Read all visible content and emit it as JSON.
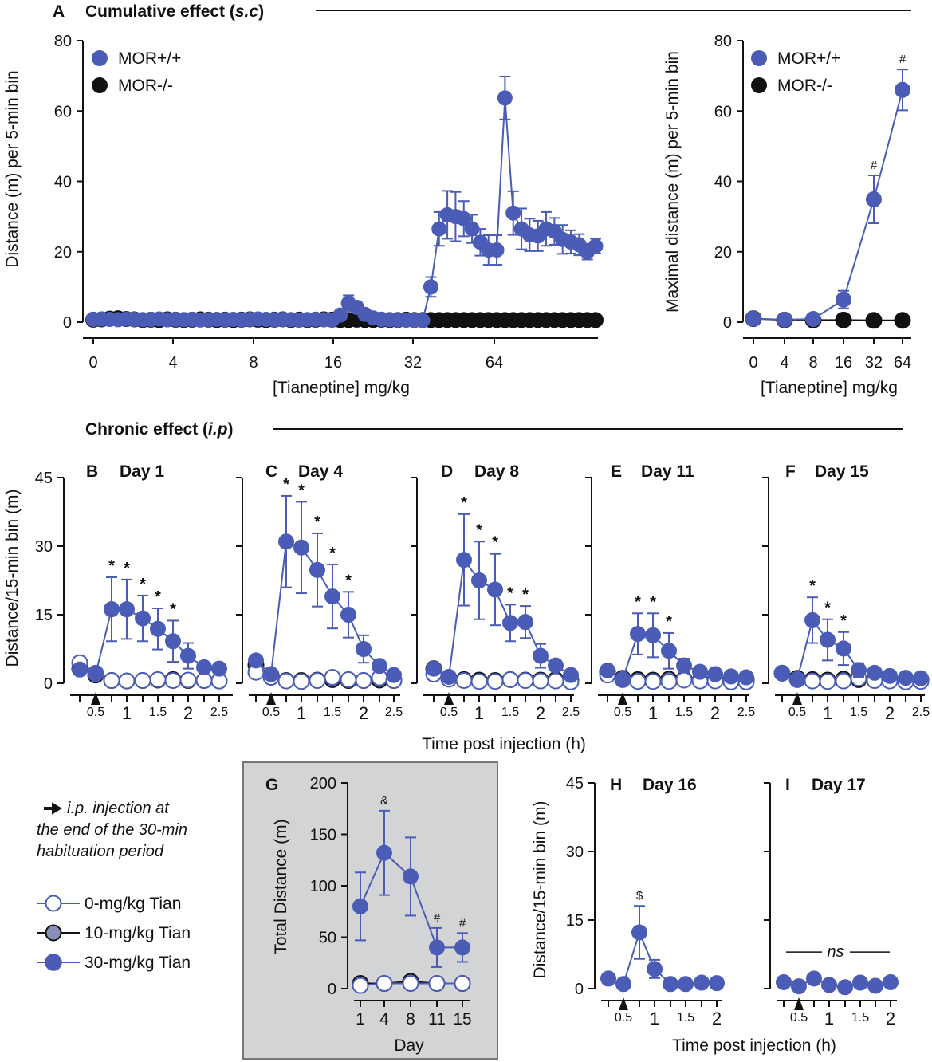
{
  "colors": {
    "blue": "#4a5cb6",
    "black": "#111111",
    "grey": "#8a8fb8",
    "white": "#ffffff",
    "panel_bg": "#d3d4d6",
    "panel_border": "#777777"
  },
  "section_a": {
    "letter": "A",
    "title": "Cumulative effect (",
    "title_italic": "s.c",
    "title_end": ")"
  },
  "section_b": {
    "title": "Chronic effect (",
    "title_italic": "i.p",
    "title_end": ")"
  },
  "chart_data": [
    {
      "id": "A-left",
      "type": "line",
      "title": "",
      "xlabel": "[Tianeptine] mg/kg",
      "ylabel": "Distance (m) per 5-min bin",
      "ylim": [
        0,
        80
      ],
      "yticks": [
        "0",
        "20",
        "40",
        "60",
        "80"
      ],
      "xticks": [
        "0",
        "4",
        "8",
        "16",
        "32",
        "64"
      ],
      "legend": [
        {
          "name": "MOR+/+",
          "color": "blue"
        },
        {
          "name": "MOR-/-",
          "color": "black"
        }
      ],
      "series": [
        {
          "name": "MOR+/+",
          "values": [
            0.8,
            0.9,
            0.8,
            0.7,
            0.9,
            0.8,
            0.7,
            0.8,
            0.9,
            0.7,
            0.8,
            0.7,
            0.8,
            0.6,
            0.7,
            0.8,
            0.7,
            0.8,
            0.7,
            0.8,
            0.9,
            0.8,
            0.7,
            0.8,
            0.7,
            0.6,
            0.7,
            0.8,
            0.7,
            0.6,
            2,
            5.4,
            4.2,
            2.2,
            1.2,
            0.8,
            0.7,
            0.6,
            0.6,
            0.5,
            0.5,
            10,
            26.5,
            30.5,
            30,
            29.4,
            26.5,
            22.7,
            20.5,
            20.5,
            63.7,
            31,
            26.5,
            24.8,
            24.5,
            26.5,
            25.8,
            23.5,
            22.8,
            22,
            20,
            21.6
          ],
          "errors": [
            0,
            0,
            0,
            0,
            0,
            0,
            0,
            0,
            0,
            0,
            0,
            0,
            0,
            0,
            0,
            0,
            0,
            0,
            0,
            0,
            0,
            0,
            0,
            0,
            0,
            0,
            0,
            0,
            0,
            0,
            1,
            2.2,
            1.5,
            1,
            0,
            0,
            0,
            0,
            0,
            0,
            0,
            2.8,
            4.8,
            6.8,
            7,
            5,
            4,
            3.8,
            4.2,
            4.2,
            6.1,
            6.2,
            5.8,
            4.6,
            4.3,
            4.8,
            3.8,
            4.1,
            3.3,
            3,
            2.2,
            2.1
          ]
        },
        {
          "name": "MOR-/-",
          "values": [
            0.7,
            0.8,
            1,
            1.1,
            0.9,
            0.8,
            0.6,
            0.7,
            0.6,
            0.8,
            0.7,
            0.6,
            0.7,
            0.8,
            0.7,
            0.6,
            0.7,
            0.6,
            0.7,
            0.8,
            0.7,
            0.6,
            0.7,
            0.8,
            0.6,
            0.7,
            0.6,
            0.7,
            0.8,
            0.7,
            0.6,
            0.6,
            0.7,
            0.6,
            0.6,
            0.7,
            0.6,
            0.6,
            0.7,
            0.6,
            0.6,
            0.6,
            0.6,
            0.6,
            0.6,
            0.6,
            0.6,
            0.6,
            0.6,
            0.6,
            0.6,
            0.6,
            0.6,
            0.6,
            0.6,
            0.6,
            0.6,
            0.6,
            0.6,
            0.6,
            0.6,
            0.6
          ]
        }
      ]
    },
    {
      "id": "A-right",
      "type": "line",
      "xlabel": "[Tianeptine] mg/kg",
      "ylabel": "Maximal distance (m) per 5-min bin",
      "ylim": [
        0,
        80
      ],
      "yticks": [
        "0",
        "20",
        "40",
        "60",
        "80"
      ],
      "categories": [
        "0",
        "4",
        "8",
        "16",
        "32",
        "64"
      ],
      "legend": [
        {
          "name": "MOR+/+",
          "color": "blue"
        },
        {
          "name": "MOR-/-",
          "color": "black"
        }
      ],
      "series": [
        {
          "name": "MOR+/+",
          "values": [
            1,
            0.7,
            0.9,
            6.4,
            34.9,
            66
          ],
          "errors": [
            0,
            0,
            0,
            2.5,
            6.8,
            5.8
          ],
          "marks": [
            "",
            "",
            "",
            "",
            "#",
            "#"
          ]
        },
        {
          "name": "MOR-/-",
          "values": [
            1,
            0.6,
            0.6,
            0.6,
            0.5,
            0.5
          ]
        }
      ]
    },
    {
      "id": "B",
      "type": "line",
      "letter": "B",
      "title": "Day 1",
      "ylabel": "Distance/15-min bin (m)",
      "ylim": [
        0,
        45
      ],
      "yticks": [
        "0",
        "15",
        "30",
        "45"
      ],
      "xticks": [
        "0.5",
        "1",
        "1.5",
        "2",
        "2.5"
      ],
      "series": [
        {
          "name": "30-mg/kg Tian",
          "values": [
            3,
            2,
            16.2,
            16.2,
            14.2,
            11.9,
            9.2,
            6,
            3.5,
            3.2
          ],
          "errors": [
            0,
            0,
            7,
            6.5,
            5,
            4.5,
            4.5,
            2.8,
            0,
            0
          ],
          "marks": [
            "",
            "",
            "*",
            "*",
            "*",
            "*",
            "*",
            "",
            "",
            ""
          ]
        },
        {
          "name": "10-mg/kg Tian",
          "values": [
            3.2,
            1.8,
            0.6,
            0.5,
            0.6,
            0.7,
            0.8,
            0.6,
            0.6,
            0.5
          ]
        },
        {
          "name": "0-mg/kg Tian",
          "values": [
            4.5,
            2.2,
            0.6,
            0.5,
            0.6,
            0.8,
            0.6,
            0.7,
            0.6,
            0.5
          ]
        }
      ]
    },
    {
      "id": "C",
      "type": "line",
      "letter": "C",
      "title": "Day 4",
      "ylim": [
        0,
        45
      ],
      "yticks": [
        "0",
        "15",
        "30",
        "45"
      ],
      "xticks": [
        "0.5",
        "1",
        "1.5",
        "2",
        "2.5"
      ],
      "series": [
        {
          "name": "30-mg/kg Tian",
          "values": [
            5,
            2,
            31,
            29.7,
            24.8,
            19,
            15,
            7.5,
            3.8,
            1.8
          ],
          "errors": [
            0,
            0,
            10,
            10,
            8,
            7,
            5,
            3,
            0,
            0
          ],
          "marks": [
            "",
            "",
            "*",
            "*",
            "*",
            "*",
            "*",
            "",
            "",
            ""
          ]
        },
        {
          "name": "10-mg/kg Tian",
          "values": [
            4,
            1.8,
            0.6,
            0.6,
            0.7,
            0.8,
            0.6,
            0.6,
            0.7,
            0.6
          ]
        },
        {
          "name": "0-mg/kg Tian",
          "values": [
            2.4,
            1.3,
            0.5,
            0.4,
            0.6,
            1.3,
            0.8,
            0.6,
            1.2,
            0.6
          ]
        }
      ]
    },
    {
      "id": "D",
      "type": "line",
      "letter": "D",
      "title": "Day 8",
      "ylim": [
        0,
        45
      ],
      "yticks": [
        "0",
        "15",
        "30",
        "45"
      ],
      "xticks": [
        "0.5",
        "1",
        "1.5",
        "2",
        "2.5"
      ],
      "series": [
        {
          "name": "30-mg/kg Tian",
          "values": [
            3.2,
            1.4,
            27,
            22.5,
            20.5,
            13.2,
            13.4,
            6,
            3.9,
            1.8
          ],
          "errors": [
            0,
            0,
            10,
            8.5,
            7.8,
            4,
            3.5,
            2.6,
            0,
            0
          ],
          "marks": [
            "",
            "",
            "*",
            "*",
            "*",
            "*",
            "*",
            "",
            "",
            ""
          ]
        },
        {
          "name": "10-mg/kg Tian",
          "values": [
            3.2,
            1.2,
            0.8,
            0.7,
            0.6,
            0.8,
            0.7,
            0.7,
            0.8,
            0.6
          ]
        },
        {
          "name": "0-mg/kg Tian",
          "values": [
            2,
            0.9,
            0.6,
            0.4,
            0.4,
            0.8,
            0.6,
            0.5,
            0.5,
            0.3
          ]
        }
      ]
    },
    {
      "id": "E",
      "type": "line",
      "letter": "E",
      "title": "Day 11",
      "ylim": [
        0,
        45
      ],
      "yticks": [
        "0",
        "15",
        "30",
        "45"
      ],
      "xticks": [
        "0.5",
        "1",
        "1.5",
        "2",
        "2.5"
      ],
      "series": [
        {
          "name": "30-mg/kg Tian",
          "values": [
            2.8,
            0.9,
            10.8,
            10.5,
            7.1,
            3.9,
            2.5,
            2,
            1.5,
            1.3
          ],
          "errors": [
            0,
            0,
            4.5,
            4.8,
            3.9,
            1.5,
            0,
            0,
            0,
            0
          ],
          "marks": [
            "",
            "",
            "*",
            "*",
            "*",
            "",
            "",
            "",
            "",
            ""
          ]
        },
        {
          "name": "10-mg/kg Tian",
          "values": [
            2.6,
            1.1,
            0.8,
            0.7,
            0.9,
            0.9,
            0.6,
            0.7,
            0.7,
            0.8
          ]
        },
        {
          "name": "0-mg/kg Tian",
          "values": [
            1.8,
            0.8,
            0.4,
            0.4,
            0.4,
            0.7,
            0.5,
            0.5,
            0.3,
            0.3
          ]
        }
      ]
    },
    {
      "id": "F",
      "type": "line",
      "letter": "F",
      "title": "Day 15",
      "ylim": [
        0,
        45
      ],
      "yticks": [
        "0",
        "15",
        "30",
        "45"
      ],
      "xticks": [
        "0.5",
        "1",
        "1.5",
        "2",
        "2.5"
      ],
      "series": [
        {
          "name": "30-mg/kg Tian",
          "values": [
            2.3,
            0.9,
            13.8,
            9.5,
            7.6,
            2.9,
            2.3,
            1.6,
            1.2,
            1.1
          ],
          "errors": [
            0,
            0,
            5,
            4.5,
            3.6,
            1.5,
            0,
            0,
            0,
            0
          ],
          "marks": [
            "",
            "",
            "*",
            "*",
            "*",
            "",
            "",
            "",
            "",
            ""
          ]
        },
        {
          "name": "10-mg/kg Tian",
          "values": [
            2.2,
            1.1,
            0.8,
            0.7,
            0.9,
            0.8,
            0.8,
            0.9,
            0.7,
            0.8
          ]
        },
        {
          "name": "0-mg/kg Tian",
          "values": [
            2.2,
            0.8,
            0.5,
            0.4,
            0.5,
            1.1,
            0.6,
            0.5,
            0.3,
            0.4
          ]
        }
      ]
    },
    {
      "id": "G",
      "type": "line",
      "letter": "G",
      "xlabel": "Day",
      "ylabel": "Total Distance (m)",
      "ylim": [
        0,
        200
      ],
      "yticks": [
        "0",
        "50",
        "100",
        "150",
        "200"
      ],
      "categories": [
        "1",
        "4",
        "8",
        "11",
        "15"
      ],
      "series": [
        {
          "name": "30-mg/kg Tian",
          "values": [
            80,
            132,
            109,
            40,
            40
          ],
          "errors": [
            33,
            41,
            38,
            19,
            14
          ],
          "marks": [
            "",
            "&",
            "",
            "#",
            "#"
          ]
        },
        {
          "name": "10-mg/kg Tian",
          "values": [
            5,
            5,
            7,
            5,
            5
          ]
        },
        {
          "name": "0-mg/kg Tian",
          "values": [
            3,
            5,
            5,
            5,
            5
          ]
        }
      ]
    },
    {
      "id": "H",
      "type": "line",
      "letter": "H",
      "title": "Day 16",
      "ylabel": "Distance/15-min bin (m)",
      "ylim": [
        0,
        45
      ],
      "yticks": [
        "0",
        "15",
        "30",
        "45"
      ],
      "xticks": [
        "0.5",
        "1",
        "1.5",
        "2"
      ],
      "series": [
        {
          "name": "30-mg/kg Tian",
          "values": [
            2.2,
            1,
            12.3,
            4.3,
            1,
            1,
            1.3,
            1.2
          ],
          "errors": [
            0,
            0,
            5.8,
            2,
            0,
            0,
            0,
            0
          ],
          "marks": [
            "",
            "",
            "$",
            "",
            "",
            "",
            "",
            ""
          ]
        }
      ]
    },
    {
      "id": "I",
      "type": "line",
      "letter": "I",
      "title": "Day 17",
      "ylim": [
        0,
        45
      ],
      "yticks": [
        "0",
        "15",
        "30",
        "45"
      ],
      "xticks": [
        "0.5",
        "1",
        "1.5",
        "2"
      ],
      "annotation": "ns",
      "series": [
        {
          "name": "30-mg/kg Tian",
          "values": [
            1.4,
            0.5,
            2.2,
            0.8,
            0.3,
            1.3,
            0.6,
            1.4
          ]
        }
      ]
    }
  ],
  "chronic_xlabel": "Time post injection (h)",
  "bottom_xlabel": "Time post injection (h)",
  "injection_note": [
    "i.p. injection at",
    "the end of the 30-min",
    "habituation period"
  ],
  "dose_legend": [
    {
      "name": "0-mg/kg Tian",
      "style": "open"
    },
    {
      "name": "10-mg/kg Tian",
      "style": "grey"
    },
    {
      "name": "30-mg/kg Tian",
      "style": "blue"
    }
  ]
}
